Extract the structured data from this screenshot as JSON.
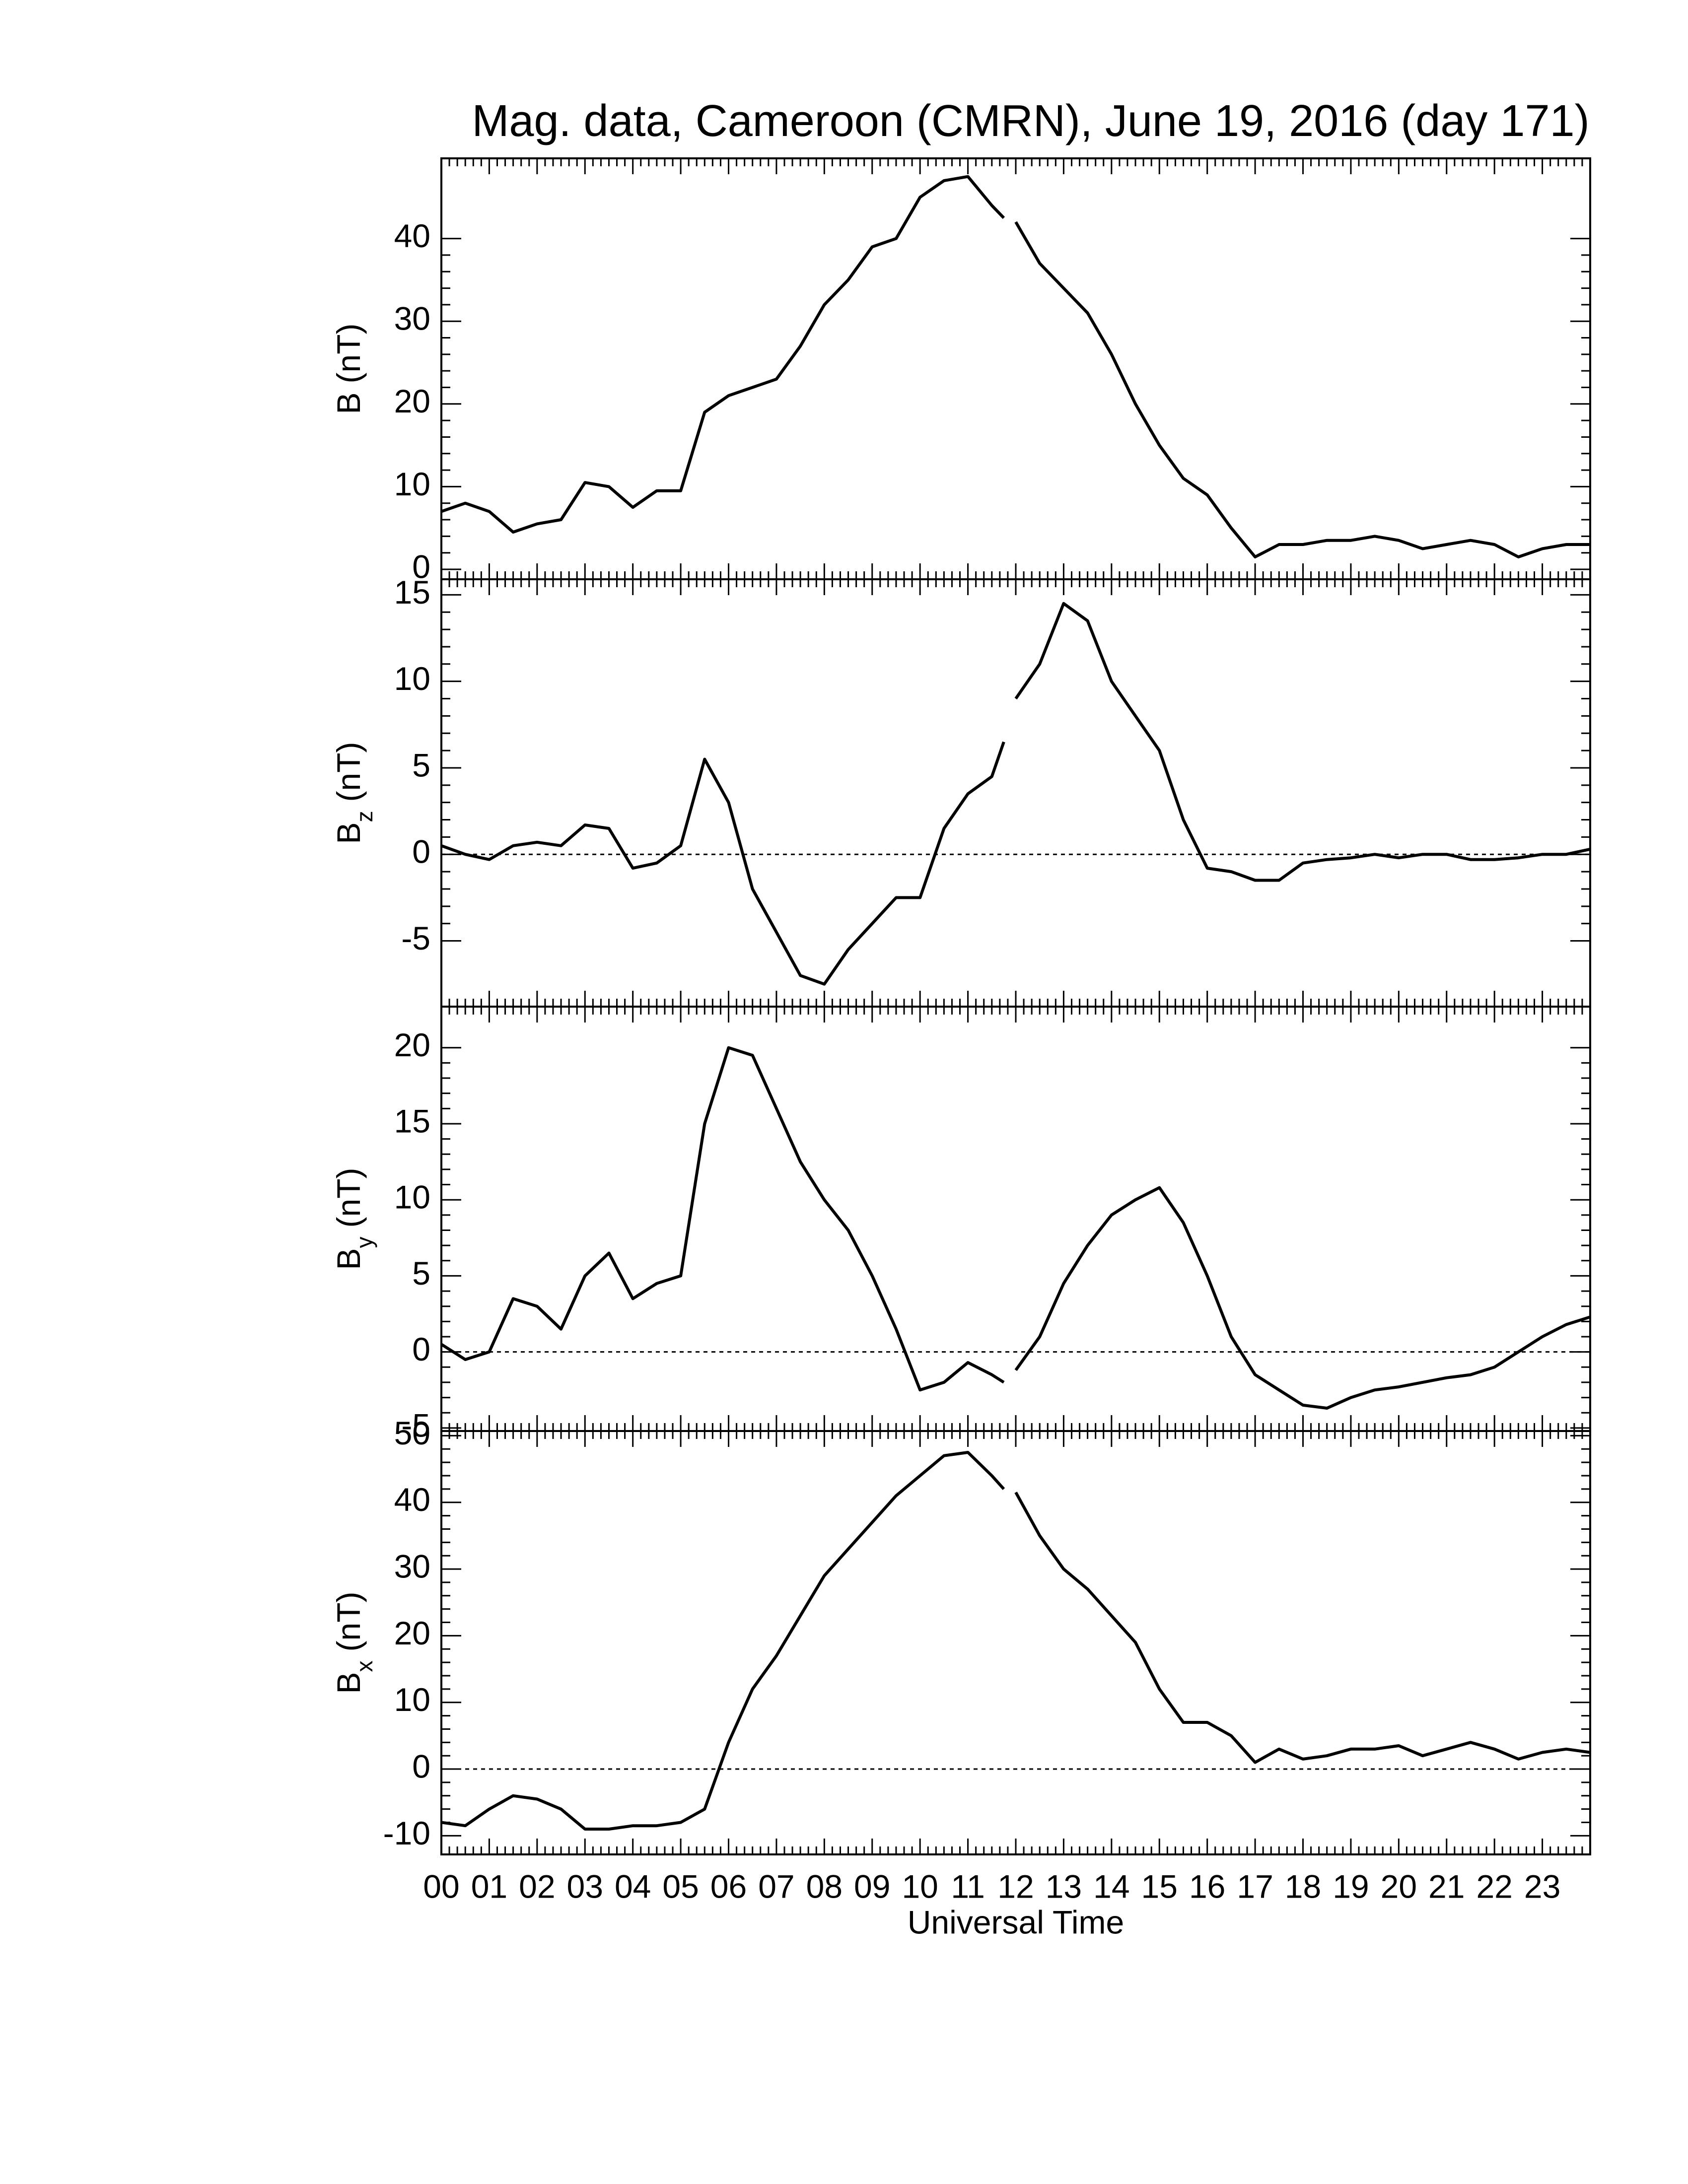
{
  "chart_data": [
    {
      "type": "line",
      "title": "Mag. data, Cameroon (CMRN), June 19, 2016 (day 171)",
      "ylabel": {
        "main": "B",
        "unit": "(nT)"
      },
      "x": [
        0,
        0.5,
        1,
        1.5,
        2,
        2.5,
        3,
        3.5,
        4,
        4.5,
        5,
        5.5,
        6,
        6.5,
        7,
        7.5,
        8,
        8.5,
        9,
        9.5,
        10,
        10.5,
        11,
        11.5,
        11.75,
        11.9,
        12,
        12.5,
        13,
        13.5,
        14,
        14.5,
        15,
        15.5,
        16,
        16.5,
        17,
        17.5,
        18,
        18.5,
        19,
        19.5,
        20,
        20.5,
        21,
        21.5,
        22,
        22.5,
        23,
        23.5,
        24
      ],
      "values": [
        7,
        8,
        7,
        4.5,
        5.5,
        6,
        10.5,
        10,
        7.5,
        9.5,
        9.5,
        19,
        21,
        22,
        23,
        27,
        32,
        35,
        39,
        40,
        45,
        47,
        47.5,
        44,
        42.5,
        null,
        42,
        37,
        34,
        31,
        26,
        20,
        15,
        11,
        9,
        5,
        1.5,
        3,
        3,
        3.5,
        3.5,
        4,
        3.5,
        2.5,
        3,
        3.5,
        3,
        1.5,
        2.5,
        3,
        3
      ],
      "color": "#000000",
      "xlim": [
        0,
        24
      ],
      "ylim": [
        -1.2,
        49.7
      ],
      "yticks": [
        0,
        10,
        20,
        30,
        40
      ]
    },
    {
      "type": "line",
      "ylabel": {
        "main": "B",
        "sub": "z",
        "unit": "(nT)"
      },
      "x": [
        0,
        0.5,
        1,
        1.5,
        2,
        2.5,
        3,
        3.5,
        4,
        4.5,
        5,
        5.5,
        6,
        6.5,
        7,
        7.5,
        8,
        8.5,
        9,
        9.5,
        10,
        10.5,
        11,
        11.5,
        11.75,
        11.9,
        12,
        12.5,
        13,
        13.5,
        14,
        14.5,
        15,
        15.5,
        16,
        16.5,
        17,
        17.5,
        18,
        18.5,
        19,
        19.5,
        20,
        20.5,
        21,
        21.5,
        22,
        22.5,
        23,
        23.5,
        24
      ],
      "values": [
        0.5,
        0,
        -0.3,
        0.5,
        0.7,
        0.5,
        1.7,
        1.5,
        -0.8,
        -0.5,
        0.5,
        5.5,
        3,
        -2,
        -4.5,
        -7,
        -7.5,
        -5.5,
        -4,
        -2.5,
        -2.5,
        1.5,
        3.5,
        4.5,
        6.5,
        null,
        9,
        11,
        14.5,
        13.5,
        10,
        8,
        6,
        2,
        -0.8,
        -1,
        -1.5,
        -1.5,
        -0.5,
        -0.3,
        -0.2,
        0,
        -0.2,
        0,
        0,
        -0.3,
        -0.3,
        -0.2,
        0,
        0,
        0.3
      ],
      "color": "#000000",
      "xlim": [
        0,
        24
      ],
      "ylim": [
        -8.8,
        15.9
      ],
      "yticks": [
        -5,
        0,
        5,
        10,
        15
      ],
      "hline": 0
    },
    {
      "type": "line",
      "ylabel": {
        "main": "B",
        "sub": "y",
        "unit": "(nT)"
      },
      "x": [
        0,
        0.5,
        1,
        1.5,
        2,
        2.5,
        3,
        3.5,
        4,
        4.5,
        5,
        5.5,
        6,
        6.5,
        7,
        7.5,
        8,
        8.5,
        9,
        9.5,
        10,
        10.5,
        11,
        11.5,
        11.75,
        11.9,
        12,
        12.5,
        13,
        13.5,
        14,
        14.5,
        15,
        15.5,
        16,
        16.5,
        17,
        17.5,
        18,
        18.5,
        19,
        19.5,
        20,
        20.5,
        21,
        21.5,
        22,
        22.5,
        23,
        23.5,
        24
      ],
      "values": [
        0.5,
        -0.5,
        0,
        3.5,
        3,
        1.5,
        5,
        6.5,
        3.5,
        4.5,
        5,
        15,
        20,
        19.5,
        16,
        12.5,
        10,
        8,
        5,
        1.5,
        -2.5,
        -2,
        -0.7,
        -1.5,
        -2,
        null,
        -1.2,
        1,
        4.5,
        7,
        9,
        10,
        10.8,
        8.5,
        5,
        1,
        -1.5,
        -2.5,
        -3.5,
        -3.7,
        -3,
        -2.5,
        -2.3,
        -2,
        -1.7,
        -1.5,
        -1,
        0,
        1,
        1.8,
        2.3
      ],
      "color": "#000000",
      "xlim": [
        0,
        24
      ],
      "ylim": [
        -5.2,
        22.7
      ],
      "yticks": [
        -5,
        0,
        5,
        10,
        15,
        20
      ],
      "hline": 0
    },
    {
      "type": "line",
      "ylabel": {
        "main": "B",
        "sub": "x",
        "unit": "(nT)"
      },
      "xlabel": "Universal Time",
      "x": [
        0,
        0.5,
        1,
        1.5,
        2,
        2.5,
        3,
        3.5,
        4,
        4.5,
        5,
        5.5,
        6,
        6.5,
        7,
        7.5,
        8,
        8.5,
        9,
        9.5,
        10,
        10.5,
        11,
        11.5,
        11.75,
        11.9,
        12,
        12.5,
        13,
        13.5,
        14,
        14.5,
        15,
        15.5,
        16,
        16.5,
        17,
        17.5,
        18,
        18.5,
        19,
        19.5,
        20,
        20.5,
        21,
        21.5,
        22,
        22.5,
        23,
        23.5,
        24
      ],
      "values": [
        -8,
        -8.5,
        -6,
        -4,
        -4.5,
        -6,
        -9,
        -9,
        -8.5,
        -8.5,
        -8,
        -6,
        4,
        12,
        17,
        23,
        29,
        33,
        37,
        41,
        44,
        47,
        47.5,
        44,
        42,
        null,
        41.5,
        35,
        30,
        27,
        23,
        19,
        12,
        7,
        7,
        5,
        1,
        3,
        1.5,
        2,
        3,
        3,
        3.5,
        2,
        3,
        4,
        3,
        1.5,
        2.5,
        3,
        2.5
      ],
      "color": "#000000",
      "xlim": [
        0,
        24
      ],
      "ylim": [
        -12.8,
        50.7
      ],
      "yticks": [
        -10,
        0,
        10,
        20,
        30,
        40,
        50
      ],
      "hline": 0,
      "xticks": [
        {
          "value": 0,
          "label": "00"
        },
        {
          "value": 1,
          "label": "01"
        },
        {
          "value": 2,
          "label": "02"
        },
        {
          "value": 3,
          "label": "03"
        },
        {
          "value": 4,
          "label": "04"
        },
        {
          "value": 5,
          "label": "05"
        },
        {
          "value": 6,
          "label": "06"
        },
        {
          "value": 7,
          "label": "07"
        },
        {
          "value": 8,
          "label": "08"
        },
        {
          "value": 9,
          "label": "09"
        },
        {
          "value": 10,
          "label": "10"
        },
        {
          "value": 11,
          "label": "11"
        },
        {
          "value": 12,
          "label": "12"
        },
        {
          "value": 13,
          "label": "13"
        },
        {
          "value": 14,
          "label": "14"
        },
        {
          "value": 15,
          "label": "15"
        },
        {
          "value": 16,
          "label": "16"
        },
        {
          "value": 17,
          "label": "17"
        },
        {
          "value": 18,
          "label": "18"
        },
        {
          "value": 19,
          "label": "19"
        },
        {
          "value": 20,
          "label": "20"
        },
        {
          "value": 21,
          "label": "21"
        },
        {
          "value": 22,
          "label": "22"
        },
        {
          "value": 23,
          "label": "23"
        }
      ]
    }
  ]
}
